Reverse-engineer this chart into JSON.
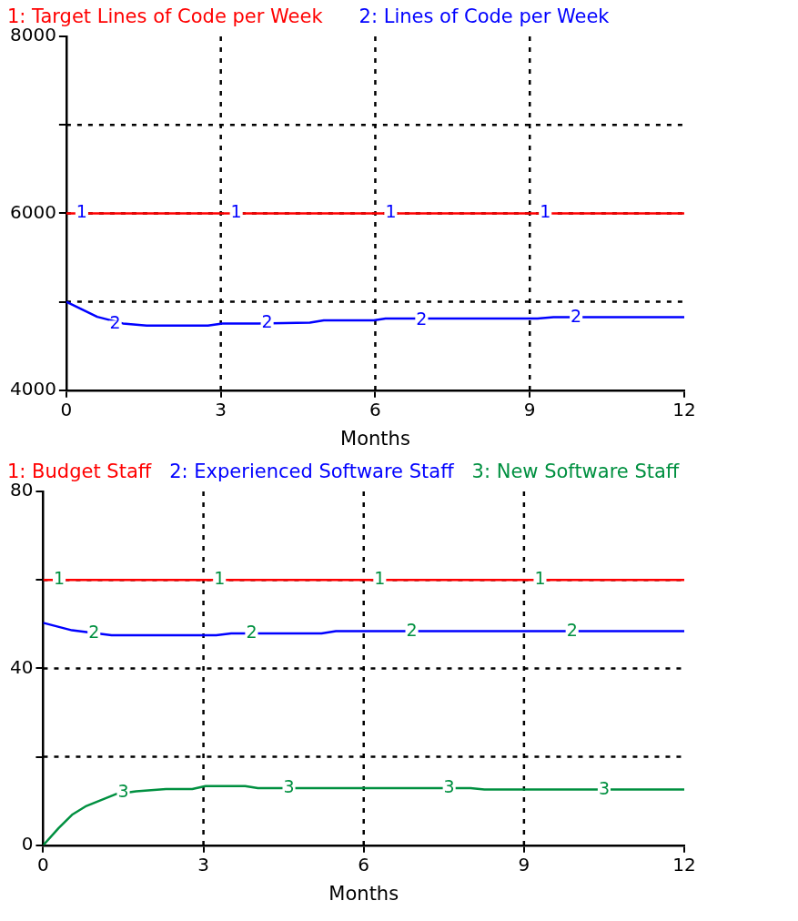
{
  "chart_data": [
    {
      "type": "line",
      "xlabel": "Months",
      "legend": "top",
      "grid": true,
      "marker": "none",
      "line_style": "solid",
      "xlim": [
        0,
        12
      ],
      "xticks": [
        0,
        3,
        6,
        9,
        12
      ],
      "ylim": [
        4000,
        8000
      ],
      "yticks": [
        4000,
        {
          "value": 5000,
          "label": null
        },
        6000,
        {
          "value": 7000,
          "label": null
        },
        8000
      ],
      "series": [
        {
          "name": "1: Target Lines of Code per Week",
          "color": "#ff0000",
          "x": [
            0,
            12
          ],
          "values": [
            6000,
            6000
          ]
        },
        {
          "name": "2: Lines of Code per Week",
          "color": "#0000ff",
          "x": [
            0,
            0.6,
            1.1,
            1.56,
            2.75,
            3.03,
            3.72,
            4.73,
            5.0,
            5.97,
            6.2,
            9.15,
            9.46,
            12
          ],
          "values": [
            5000,
            4830,
            4755,
            4730,
            4730,
            4755,
            4755,
            4765,
            4790,
            4790,
            4810,
            4810,
            4825,
            4825
          ]
        }
      ],
      "annotations": [
        {
          "text": "1",
          "x": 0.3,
          "y": 6000
        },
        {
          "text": "1",
          "x": 3.3,
          "y": 6000
        },
        {
          "text": "1",
          "x": 6.3,
          "y": 6000
        },
        {
          "text": "1",
          "x": 9.3,
          "y": 6000
        },
        {
          "text": "2",
          "x": 0.95,
          "y": 4745
        },
        {
          "text": "2",
          "x": 3.9,
          "y": 4755
        },
        {
          "text": "2",
          "x": 6.9,
          "y": 4790
        },
        {
          "text": "2",
          "x": 9.9,
          "y": 4825
        }
      ]
    },
    {
      "type": "line",
      "xlabel": "Months",
      "legend": "top",
      "grid": true,
      "marker": "none",
      "line_style": "solid",
      "xlim": [
        0,
        12
      ],
      "xticks": [
        0,
        3,
        6,
        9,
        12
      ],
      "ylim": [
        0,
        80
      ],
      "yticks": [
        0,
        {
          "value": 20,
          "label": null
        },
        40,
        {
          "value": 60,
          "label": null
        },
        80
      ],
      "series": [
        {
          "name": "1: Budget Staff",
          "color": "#ff0000",
          "x": [
            0,
            12
          ],
          "values": [
            60,
            60
          ]
        },
        {
          "name": "2: Experienced Software Staff",
          "color": "#0000ff",
          "x": [
            0,
            0.54,
            1.28,
            3.24,
            3.52,
            5.21,
            5.48,
            12
          ],
          "values": [
            50.3,
            48.6,
            47.5,
            47.5,
            47.9,
            47.9,
            48.4,
            48.4
          ]
        },
        {
          "name": "3: New Software Staff",
          "color": "#009040",
          "x": [
            0,
            0.29,
            0.54,
            0.81,
            1.37,
            1.74,
            2.3,
            2.79,
            3.04,
            3.78,
            4.02,
            8.0,
            8.26,
            12
          ],
          "values": [
            0,
            3.9,
            6.9,
            8.9,
            11.6,
            12.2,
            12.7,
            12.7,
            13.4,
            13.4,
            12.9,
            12.9,
            12.6,
            12.6
          ]
        }
      ],
      "annotations": [
        {
          "text": "1",
          "x": 0.3,
          "y": 60
        },
        {
          "text": "1",
          "x": 3.3,
          "y": 60
        },
        {
          "text": "1",
          "x": 6.3,
          "y": 60
        },
        {
          "text": "1",
          "x": 9.3,
          "y": 60
        },
        {
          "text": "2",
          "x": 0.95,
          "y": 47.9
        },
        {
          "text": "2",
          "x": 3.9,
          "y": 47.9
        },
        {
          "text": "2",
          "x": 6.9,
          "y": 48.4
        },
        {
          "text": "2",
          "x": 9.9,
          "y": 48.4
        },
        {
          "text": "3",
          "x": 1.5,
          "y": 11.8
        },
        {
          "text": "3",
          "x": 4.6,
          "y": 12.9
        },
        {
          "text": "3",
          "x": 7.6,
          "y": 12.9
        },
        {
          "text": "3",
          "x": 10.5,
          "y": 12.6
        }
      ]
    }
  ]
}
